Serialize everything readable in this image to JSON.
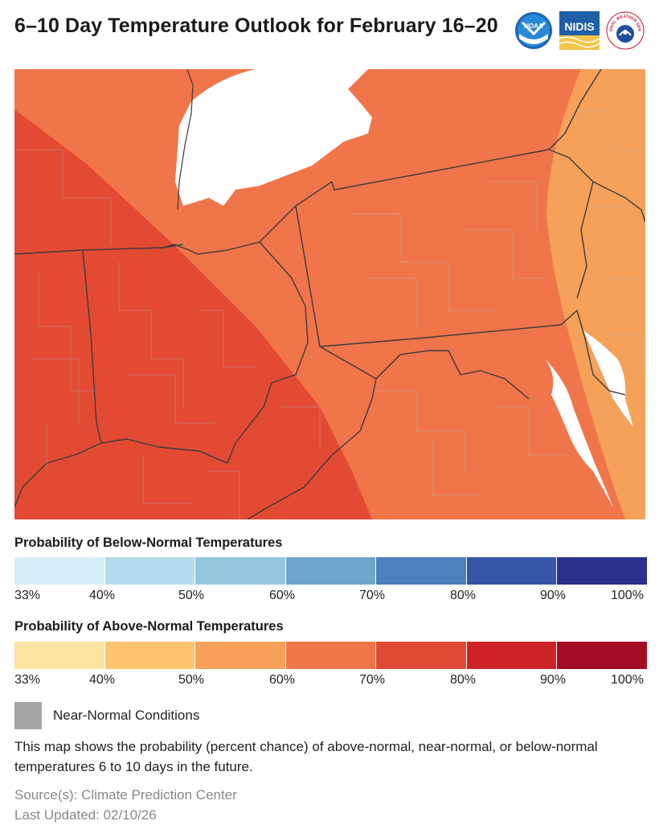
{
  "header": {
    "title": "6–10 Day Temperature Outlook for February 16–20",
    "logos": [
      {
        "name": "NOAA",
        "text": "NOAA"
      },
      {
        "name": "NIDIS",
        "text": "NIDIS"
      },
      {
        "name": "National Weather Service",
        "text": "NATIONAL WEATHER SERVICE"
      }
    ]
  },
  "map": {
    "region": "Ohio Valley and Mid-Atlantic",
    "colors": {
      "above_70_80": "#e34a33",
      "above_60_70": "#f1754a",
      "above_50_60": "#f5a15a",
      "water": "#ffffff",
      "border": "#3b3b3b"
    }
  },
  "legend_below": {
    "title": "Probability of Below-Normal Temperatures",
    "colors": [
      "#d6eef6",
      "#b3dbeb",
      "#94c6de",
      "#6ea7cd",
      "#4c7fbe",
      "#3655a6",
      "#29308d"
    ],
    "ticks": [
      "33%",
      "40%",
      "50%",
      "60%",
      "70%",
      "80%",
      "90%",
      "100%"
    ]
  },
  "legend_above": {
    "title": "Probability of Above-Normal Temperatures",
    "colors": [
      "#fde3a0",
      "#fdc46f",
      "#f8a15a",
      "#f1754a",
      "#e04a34",
      "#cc2228",
      "#a30d23"
    ],
    "ticks": [
      "33%",
      "40%",
      "50%",
      "60%",
      "70%",
      "80%",
      "90%",
      "100%"
    ]
  },
  "near_normal": {
    "label": "Near-Normal Conditions",
    "color": "#a6a6a6"
  },
  "description": "This map shows the probability (percent chance) of above-normal, near-normal, or below-normal temperatures 6 to 10 days in the future.",
  "footer": {
    "source": "Source(s): Climate Prediction Center",
    "updated": "Last Updated: 02/10/26"
  }
}
